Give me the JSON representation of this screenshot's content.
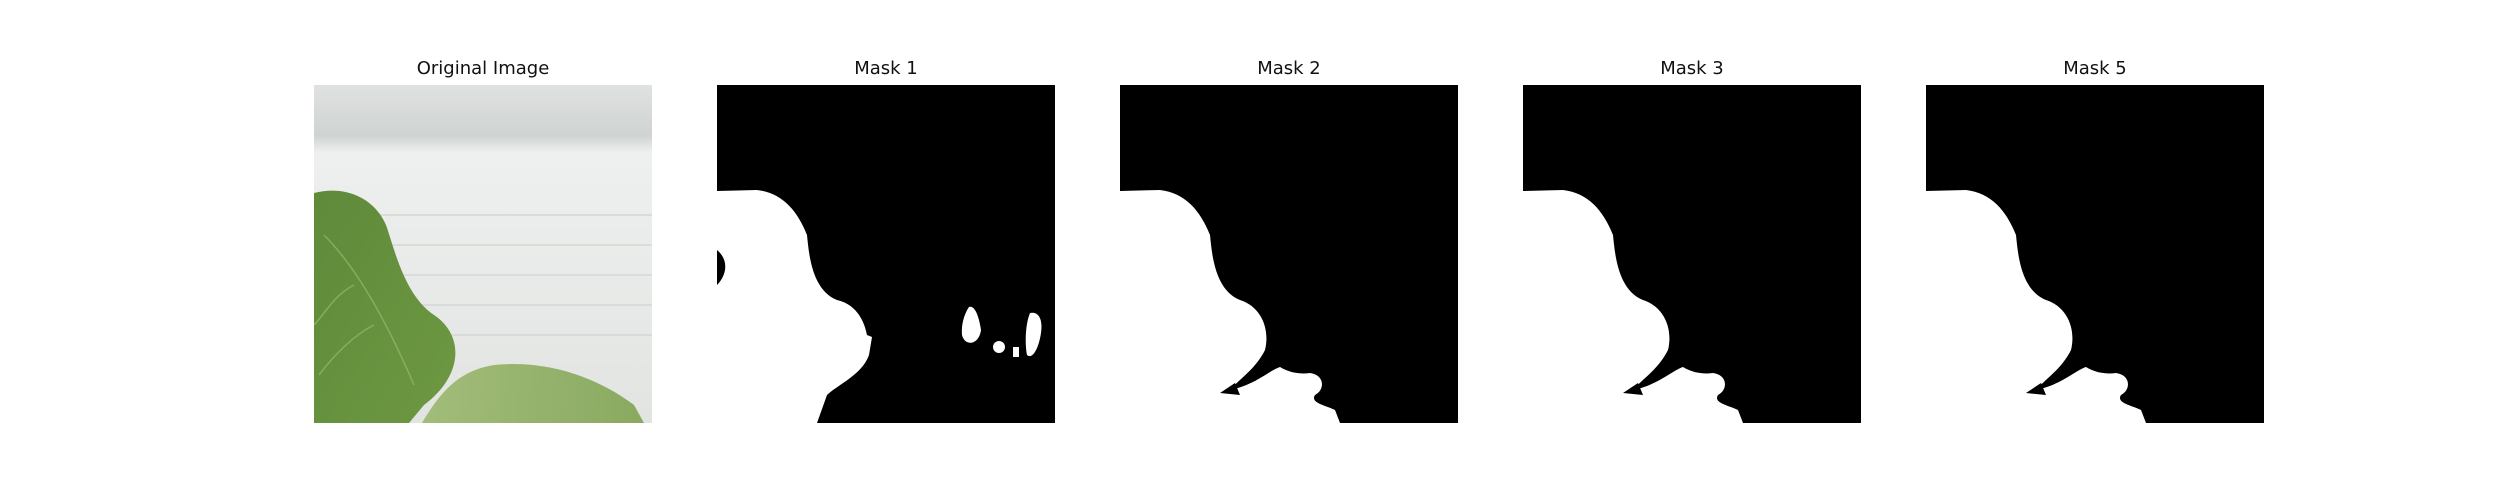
{
  "panels": [
    {
      "id": "original",
      "title": "Original Image"
    },
    {
      "id": "mask1",
      "title": "Mask 1"
    },
    {
      "id": "mask2",
      "title": "Mask 2"
    },
    {
      "id": "mask3",
      "title": "Mask 3"
    },
    {
      "id": "mask5",
      "title": "Mask 5"
    }
  ],
  "colors": {
    "background": "#ffffff",
    "mask_bg": "#000000",
    "mask_fg": "#ffffff",
    "leaf_dark": "#4f7a32",
    "leaf_light": "#8cab5e",
    "wall": "#e6e8e6"
  }
}
